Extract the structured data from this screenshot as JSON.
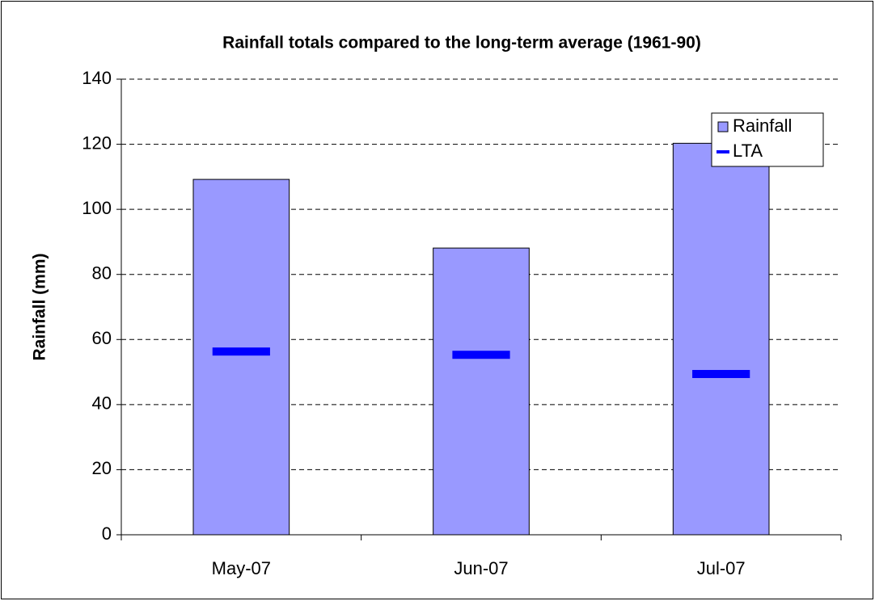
{
  "chart_data": {
    "type": "bar",
    "title": "Rainfall totals compared to the long-term average (1961-90)",
    "y_label": "Rainfall (mm)",
    "categories": [
      "May-07",
      "Jun-07",
      "Jul-07"
    ],
    "series": [
      {
        "name": "Rainfall",
        "type": "bar",
        "color": "#9999ff",
        "values": [
          109.2,
          88.1,
          120.3
        ]
      },
      {
        "name": "LTA",
        "type": "dash",
        "color": "#0000ff",
        "values": [
          56.3,
          55.3,
          49.4
        ]
      }
    ],
    "ylim": [
      0,
      140
    ],
    "yticks": [
      0,
      20,
      40,
      60,
      80,
      100,
      120,
      140
    ],
    "grid": true,
    "legend": "top-right"
  }
}
